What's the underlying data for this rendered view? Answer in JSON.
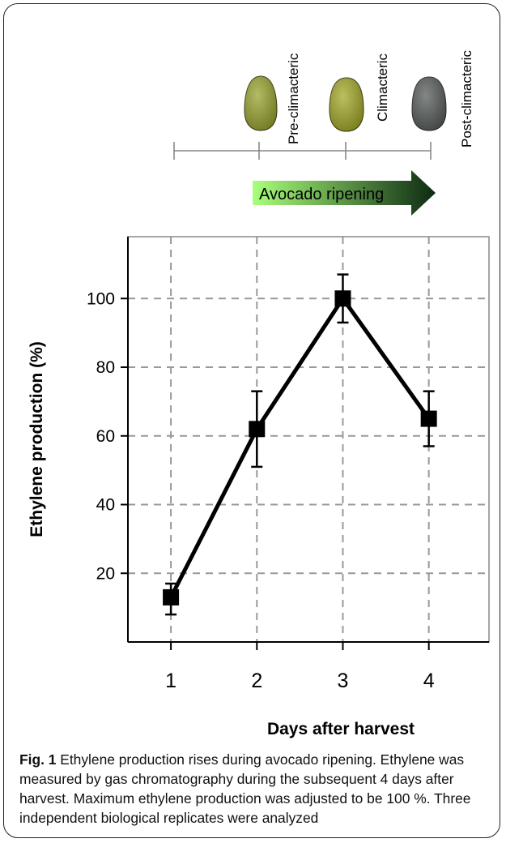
{
  "ripening_panel": {
    "stages": [
      "Pre-climacteric",
      "Climacteric",
      "Post-climacteric"
    ],
    "stage_colors": [
      "#9aa532",
      "#a4aa2a",
      "#5a5f5c"
    ],
    "arrow_label": "Avocado ripening",
    "arrow_gradient": [
      "#a9ff7a",
      "#0d2a12"
    ]
  },
  "chart_data": {
    "type": "line",
    "x": [
      1,
      2,
      3,
      4
    ],
    "y": [
      13,
      62,
      100,
      65
    ],
    "error_low": [
      8,
      51,
      93,
      57
    ],
    "error_high": [
      17,
      73,
      107,
      73
    ],
    "xlabel": "Days after harvest",
    "ylabel": "Ethylene production (%)",
    "x_ticks": [
      "1",
      "2",
      "3",
      "4"
    ],
    "y_ticks": [
      "20",
      "40",
      "60",
      "80",
      "100"
    ],
    "y_tick_values": [
      20,
      40,
      60,
      80,
      100
    ],
    "xlim": [
      0.5,
      4.7
    ],
    "ylim": [
      0,
      118
    ],
    "grid": true,
    "marker": "square",
    "line_color": "#000000",
    "grid_color": "#999999"
  },
  "caption": {
    "label": "Fig. 1",
    "text": " Ethylene production rises during avocado ripening. Ethylene was measured by gas chromatography during the subsequent 4 days after harvest. Maximum ethylene production was adjusted to be 100 %. Three independent biological replicates were analyzed"
  }
}
